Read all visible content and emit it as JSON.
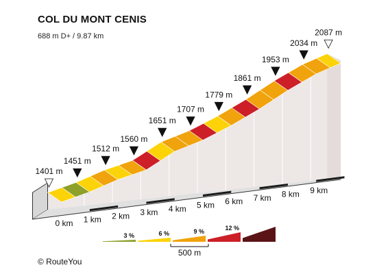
{
  "title": "COL DU MONT CENIS",
  "subtitle": "688 m D+ / 9.87 km",
  "copyright": "©  RouteYou",
  "colors": {
    "g3": "#8ea02a",
    "g6": "#fcd308",
    "g9": "#f0a30c",
    "g12": "#cc1f28",
    "g15": "#5a1416",
    "wall": "#ede7e6",
    "bottom": "#d7d7d7",
    "km_tick": "#1a1a1a",
    "outline": "#333333"
  },
  "chart_data": {
    "type": "area",
    "title": "COL DU MONT CENIS",
    "subtitle": "688 m D+ / 9.87 km",
    "x_unit": "km",
    "y_unit": "m",
    "total_distance_km": 9.87,
    "elevation_gain_m": 688,
    "km_labels": [
      "0 km",
      "1 km",
      "2 km",
      "3 km",
      "4 km",
      "5 km",
      "6 km",
      "7 km",
      "8 km",
      "9 km"
    ],
    "points": [
      {
        "km": 0,
        "elev": 1401,
        "label": "1401 m",
        "marker": "start"
      },
      {
        "km": 1,
        "elev": 1451,
        "label": "1451 m",
        "marker": "km"
      },
      {
        "km": 2,
        "elev": 1512,
        "label": "1512 m",
        "marker": "km"
      },
      {
        "km": 3,
        "elev": 1560,
        "label": "1560 m",
        "marker": "km"
      },
      {
        "km": 4,
        "elev": 1651,
        "label": "1651 m",
        "marker": "km"
      },
      {
        "km": 5,
        "elev": 1707,
        "label": "1707 m",
        "marker": "km"
      },
      {
        "km": 6,
        "elev": 1779,
        "label": "1779 m",
        "marker": "km"
      },
      {
        "km": 7,
        "elev": 1861,
        "label": "1861 m",
        "marker": "km"
      },
      {
        "km": 8,
        "elev": 1953,
        "label": "1953 m",
        "marker": "km"
      },
      {
        "km": 9,
        "elev": 2034,
        "label": "2034 m",
        "marker": "km"
      },
      {
        "km": 9.87,
        "elev": 2087,
        "label": "2087 m",
        "marker": "end"
      }
    ],
    "segments": [
      {
        "from_km": 0,
        "to_km": 0.5,
        "grade_class": "6"
      },
      {
        "from_km": 0.5,
        "to_km": 1,
        "grade_class": "3"
      },
      {
        "from_km": 1,
        "to_km": 1.5,
        "grade_class": "6"
      },
      {
        "from_km": 1.5,
        "to_km": 2,
        "grade_class": "9"
      },
      {
        "from_km": 2,
        "to_km": 2.5,
        "grade_class": "6"
      },
      {
        "from_km": 2.5,
        "to_km": 3,
        "grade_class": "9"
      },
      {
        "from_km": 3,
        "to_km": 3.5,
        "grade_class": "12"
      },
      {
        "from_km": 3.5,
        "to_km": 4,
        "grade_class": "6"
      },
      {
        "from_km": 4,
        "to_km": 4.5,
        "grade_class": "9"
      },
      {
        "from_km": 4.5,
        "to_km": 5,
        "grade_class": "9"
      },
      {
        "from_km": 5,
        "to_km": 5.5,
        "grade_class": "12"
      },
      {
        "from_km": 5.5,
        "to_km": 6,
        "grade_class": "6"
      },
      {
        "from_km": 6,
        "to_km": 6.5,
        "grade_class": "9"
      },
      {
        "from_km": 6.5,
        "to_km": 7,
        "grade_class": "12"
      },
      {
        "from_km": 7,
        "to_km": 7.5,
        "grade_class": "9"
      },
      {
        "from_km": 7.5,
        "to_km": 8,
        "grade_class": "9"
      },
      {
        "from_km": 8,
        "to_km": 8.5,
        "grade_class": "12"
      },
      {
        "from_km": 8.5,
        "to_km": 9,
        "grade_class": "9"
      },
      {
        "from_km": 9,
        "to_km": 9.5,
        "grade_class": "9"
      },
      {
        "from_km": 9.5,
        "to_km": 9.87,
        "grade_class": "6"
      }
    ],
    "legend": {
      "items": [
        {
          "label": "3 %",
          "grade_class": "3"
        },
        {
          "label": "6 %",
          "grade_class": "6"
        },
        {
          "label": "9 %",
          "grade_class": "9"
        },
        {
          "label": "12 %",
          "grade_class": "12"
        },
        {
          "label": "",
          "grade_class": "15"
        }
      ],
      "scale_label": "500 m"
    }
  }
}
